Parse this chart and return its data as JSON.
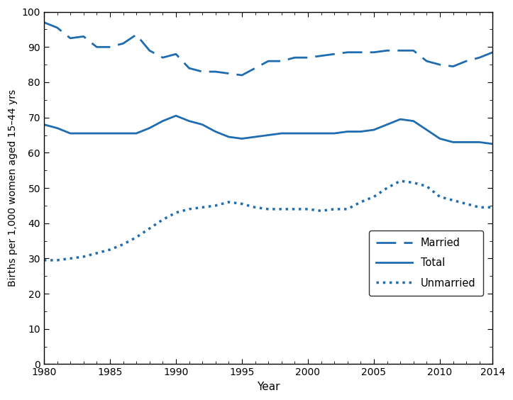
{
  "years": [
    1980,
    1981,
    1982,
    1983,
    1984,
    1985,
    1986,
    1987,
    1988,
    1989,
    1990,
    1991,
    1992,
    1993,
    1994,
    1995,
    1996,
    1997,
    1998,
    1999,
    2000,
    2001,
    2002,
    2003,
    2004,
    2005,
    2006,
    2007,
    2008,
    2009,
    2010,
    2011,
    2012,
    2013,
    2014
  ],
  "married": [
    97,
    95.5,
    92.5,
    93,
    90,
    90,
    91,
    93.5,
    89,
    87,
    88,
    84,
    83,
    83,
    82.5,
    82,
    84,
    86,
    86,
    87,
    87,
    87.5,
    88,
    88.5,
    88.5,
    88.5,
    89,
    89,
    89,
    86,
    85,
    84.5,
    86,
    87,
    88.5
  ],
  "total": [
    68,
    67,
    65.5,
    65.5,
    65.5,
    65.5,
    65.5,
    65.5,
    67,
    69,
    70.5,
    69,
    68,
    66,
    64.5,
    64,
    64.5,
    65,
    65.5,
    65.5,
    65.5,
    65.5,
    65.5,
    66,
    66,
    66.5,
    68,
    69.5,
    69,
    66.5,
    64,
    63,
    63,
    63,
    62.5
  ],
  "unmarried": [
    29.5,
    29.5,
    30,
    30.5,
    31.5,
    32.5,
    34,
    36,
    38.5,
    41,
    43,
    44,
    44.5,
    45,
    46,
    45.5,
    44.5,
    44,
    44,
    44,
    44,
    43.5,
    44,
    44,
    46,
    47.5,
    50,
    52,
    51.5,
    50.5,
    47.5,
    46.5,
    45.5,
    44.5,
    44.5
  ],
  "line_color": "#1f6cb0",
  "ylabel": "Births per 1,000 women aged 15–44 yrs",
  "xlabel": "Year",
  "ylim": [
    0,
    100
  ],
  "yticks": [
    0,
    10,
    20,
    30,
    40,
    50,
    60,
    70,
    80,
    90,
    100
  ],
  "xticks": [
    1980,
    1985,
    1990,
    1995,
    2000,
    2005,
    2010,
    2014
  ],
  "legend_labels": [
    "Married",
    "Total",
    "Unmarried"
  ],
  "figsize": [
    7.23,
    5.64
  ],
  "dpi": 100
}
